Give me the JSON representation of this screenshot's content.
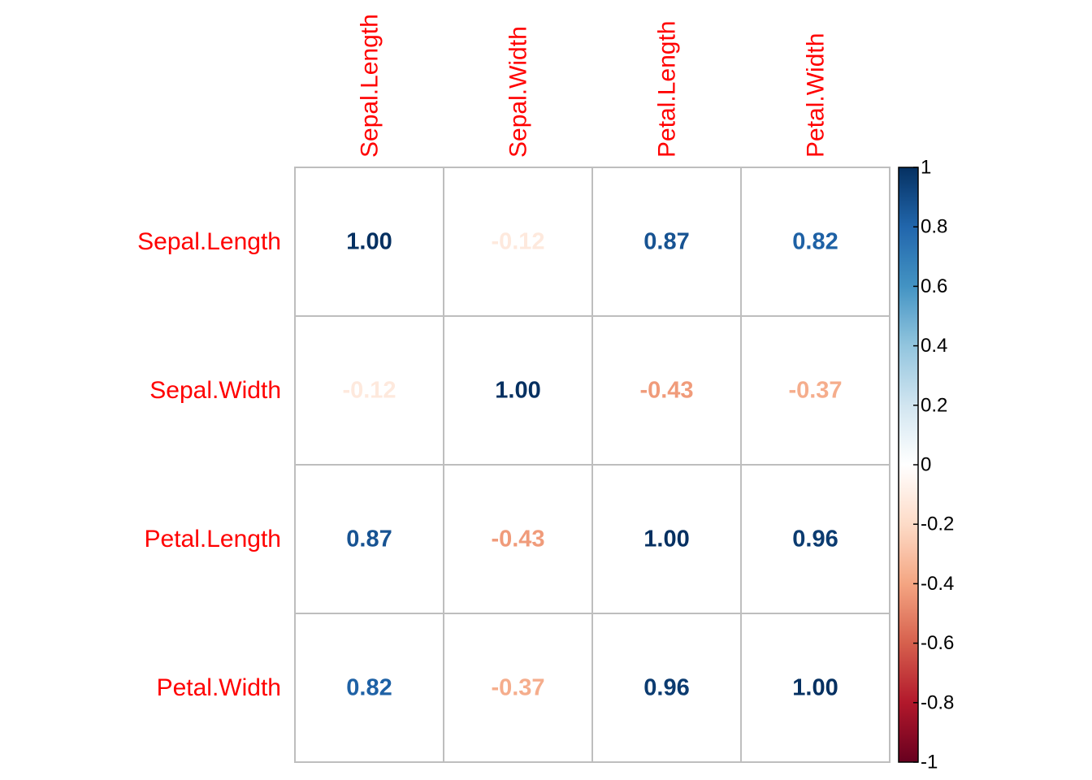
{
  "chart_data": {
    "type": "heatmap",
    "style": "correlation matrix (number method)",
    "variables": [
      "Sepal.Length",
      "Sepal.Width",
      "Petal.Length",
      "Petal.Width"
    ],
    "matrix": [
      [
        1.0,
        -0.12,
        0.87,
        0.82
      ],
      [
        -0.12,
        1.0,
        -0.43,
        -0.37
      ],
      [
        0.87,
        -0.43,
        1.0,
        0.96
      ],
      [
        0.82,
        -0.37,
        0.96,
        1.0
      ]
    ],
    "value_labels": [
      [
        "1.00",
        "-0.12",
        "0.87",
        "0.82"
      ],
      [
        "-0.12",
        "1.00",
        "-0.43",
        "-0.37"
      ],
      [
        "0.87",
        "-0.43",
        "1.00",
        "0.96"
      ],
      [
        "0.82",
        "-0.37",
        "0.96",
        "1.00"
      ]
    ],
    "color_scale": {
      "range": [
        -1,
        1
      ],
      "ticks": [
        "1",
        "0.8",
        "0.6",
        "0.4",
        "0.2",
        "0",
        "-0.2",
        "-0.4",
        "-0.6",
        "-0.8",
        "-1"
      ],
      "tick_values": [
        1,
        0.8,
        0.6,
        0.4,
        0.2,
        0,
        -0.2,
        -0.4,
        -0.6,
        -0.8,
        -1
      ],
      "colors": [
        "#67001F",
        "#B2182B",
        "#D6604D",
        "#F4A582",
        "#FDDBC7",
        "#FFFFFF",
        "#D1E5F0",
        "#92C5DE",
        "#4393C3",
        "#2166AC",
        "#053061"
      ],
      "legend_placement": "right"
    },
    "label_color": "#FF0000",
    "grid": true,
    "grid_color": "#BEBEBE"
  }
}
